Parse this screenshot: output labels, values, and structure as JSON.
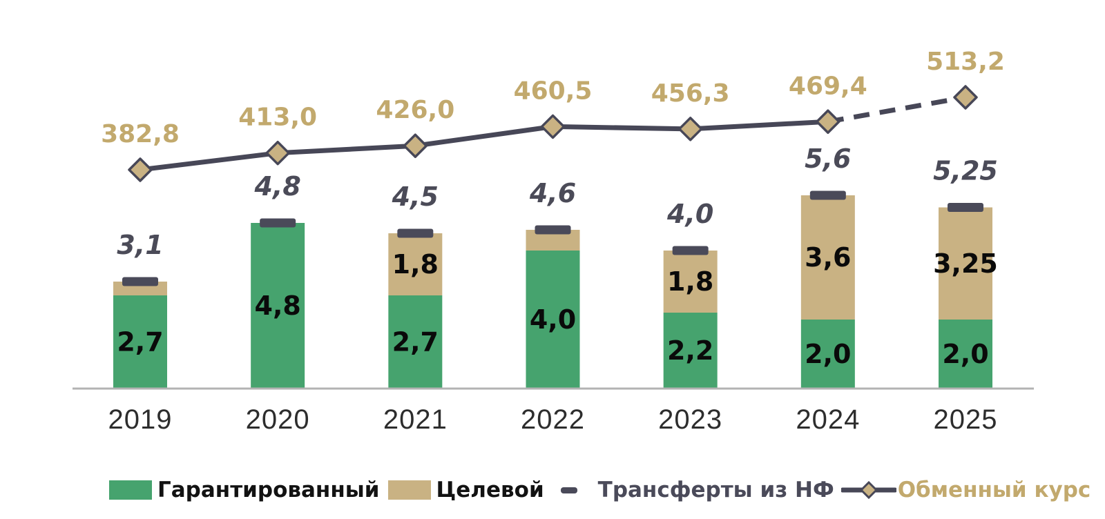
{
  "chart_data": {
    "type": "combo",
    "background": "#ffffff",
    "categories": [
      "2019",
      "2020",
      "2021",
      "2022",
      "2023",
      "2024",
      "2025"
    ],
    "series": [
      {
        "name": "Гарантированный",
        "type": "bar",
        "color": "#46a36e",
        "values": [
          2.7,
          4.8,
          2.7,
          4.0,
          2.2,
          2.0,
          2.0
        ],
        "labels": [
          "2,7",
          "4,8",
          "2,7",
          "4,0",
          "2,2",
          "2,0",
          "2,0"
        ],
        "label_color": "#0a0a0a"
      },
      {
        "name": "Целевой",
        "type": "bar",
        "color": "#c9b283",
        "values": [
          0.4,
          0,
          1.8,
          0.6,
          1.8,
          3.6,
          3.25
        ],
        "labels": [
          "",
          "",
          "1,8",
          "",
          "1,8",
          "3,6",
          "3,25"
        ],
        "label_color": "#0a0a0a"
      },
      {
        "name": "Трансферты из НФ",
        "type": "dash-marker",
        "color": "#4a4a59"
      },
      {
        "name": "Обменный курс",
        "type": "line",
        "line_color": "#474757",
        "marker_fill": "#c9b283",
        "marker_stroke": "#474757",
        "values": [
          382.8,
          413.0,
          426.0,
          460.5,
          456.3,
          469.4,
          513.2
        ],
        "labels": [
          "382,8",
          "413,0",
          "426,0",
          "460,5",
          "456,3",
          "469,4",
          "513,2"
        ],
        "label_color": "#c2a96d",
        "dashed_from_index": 5
      }
    ],
    "totals": {
      "values": [
        3.1,
        4.8,
        4.5,
        4.6,
        4.0,
        5.6,
        5.25
      ],
      "labels": [
        "3,1",
        "4,8",
        "4,5",
        "4,6",
        "4,0",
        "5,6",
        "5,25"
      ],
      "color": "#4b4b58"
    },
    "axis": {
      "line_color": "#b3b3b3",
      "tick_label_color": "#2d2d2d"
    },
    "legend_position": "bottom"
  }
}
